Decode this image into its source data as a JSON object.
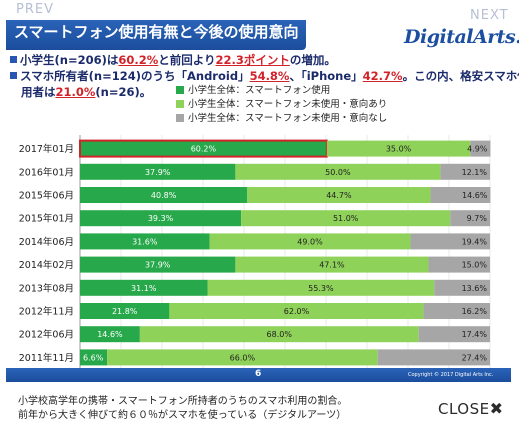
{
  "nav": {
    "prev": "PREV",
    "next": "NEXT",
    "close": "CLOSE",
    "close_glyph": "✖"
  },
  "title": {
    "main": "スマートフォン使用有無と今後の使用意向",
    "sub": "（小学生全体）"
  },
  "logo": "DigitalArts.",
  "bullets": {
    "b1": [
      "小学生(n=206)は",
      "60.2%",
      "と前回より",
      "22.3ポイント",
      "の増加。"
    ],
    "b2": [
      "スマホ所有者(n=124)のうち「Android」",
      "54.8%",
      "、「iPhone」",
      "42.7%",
      "。この内、格安スマホ使"
    ],
    "b3": [
      "用者は",
      "21.0%",
      "(n=26)。"
    ]
  },
  "footer": {
    "page": "6",
    "copyright": "Copyright © 2017 Digital Arts Inc."
  },
  "caption": {
    "line1": "小学校高学年の携帯・スマートフォン所持者のうちのスマホ利用の割合。",
    "line2": "前年から大きく伸びて約６０％がスマホを使っている（デジタルアーツ）"
  },
  "colors": {
    "series1": "#27a84a",
    "series2": "#8fd25a",
    "series3": "#a6a6a6",
    "title_bar": "#1f55a8",
    "highlight": "#d2232a"
  },
  "chart_data": {
    "type": "bar",
    "orientation": "horizontal",
    "stacked": true,
    "categories": [
      "2017年01月",
      "2016年01月",
      "2015年06月",
      "2015年01月",
      "2014年06月",
      "2014年02月",
      "2013年08月",
      "2012年11月",
      "2012年06月",
      "2011年11月"
    ],
    "series": [
      {
        "name": "小学生全体：スマートフォン使用",
        "values": [
          60.2,
          37.9,
          40.8,
          39.3,
          31.6,
          37.9,
          31.1,
          21.8,
          14.6,
          6.6
        ],
        "labels": [
          "60.2%",
          "37.9%",
          "40.8%",
          "39.3%",
          "31.6%",
          "37.9%",
          "31.1%",
          "21.8%",
          "14.6%",
          "6.6%"
        ]
      },
      {
        "name": "小学生全体：スマートフォン未使用・意向あり",
        "values": [
          35.0,
          50.0,
          44.7,
          51.0,
          49.0,
          47.1,
          55.3,
          62.0,
          68.0,
          66.0
        ],
        "labels": [
          "35.0%",
          "50.0%",
          "44.7%",
          "51.0%",
          "49.0%",
          "47.1%",
          "55.3%",
          "62.0%",
          "68.0%",
          "66.0%"
        ]
      },
      {
        "name": "小学生全体：スマートフォン未使用・意向なし",
        "values": [
          4.9,
          12.1,
          14.6,
          9.7,
          19.4,
          15.0,
          13.6,
          16.2,
          17.4,
          27.4
        ],
        "labels": [
          "4.9%",
          "12.1%",
          "14.6%",
          "9.7%",
          "19.4%",
          "15.0%",
          "13.6%",
          "16.2%",
          "17.4%",
          "27.4%"
        ]
      }
    ],
    "xlim": [
      0,
      100
    ],
    "xticks": [
      "0%",
      "10%",
      "20%",
      "30%",
      "40%",
      "50%",
      "60%",
      "70%",
      "80%",
      "90%",
      "100%"
    ],
    "highlight_category": "2017年01月",
    "grid": true,
    "legend": "top-right"
  }
}
